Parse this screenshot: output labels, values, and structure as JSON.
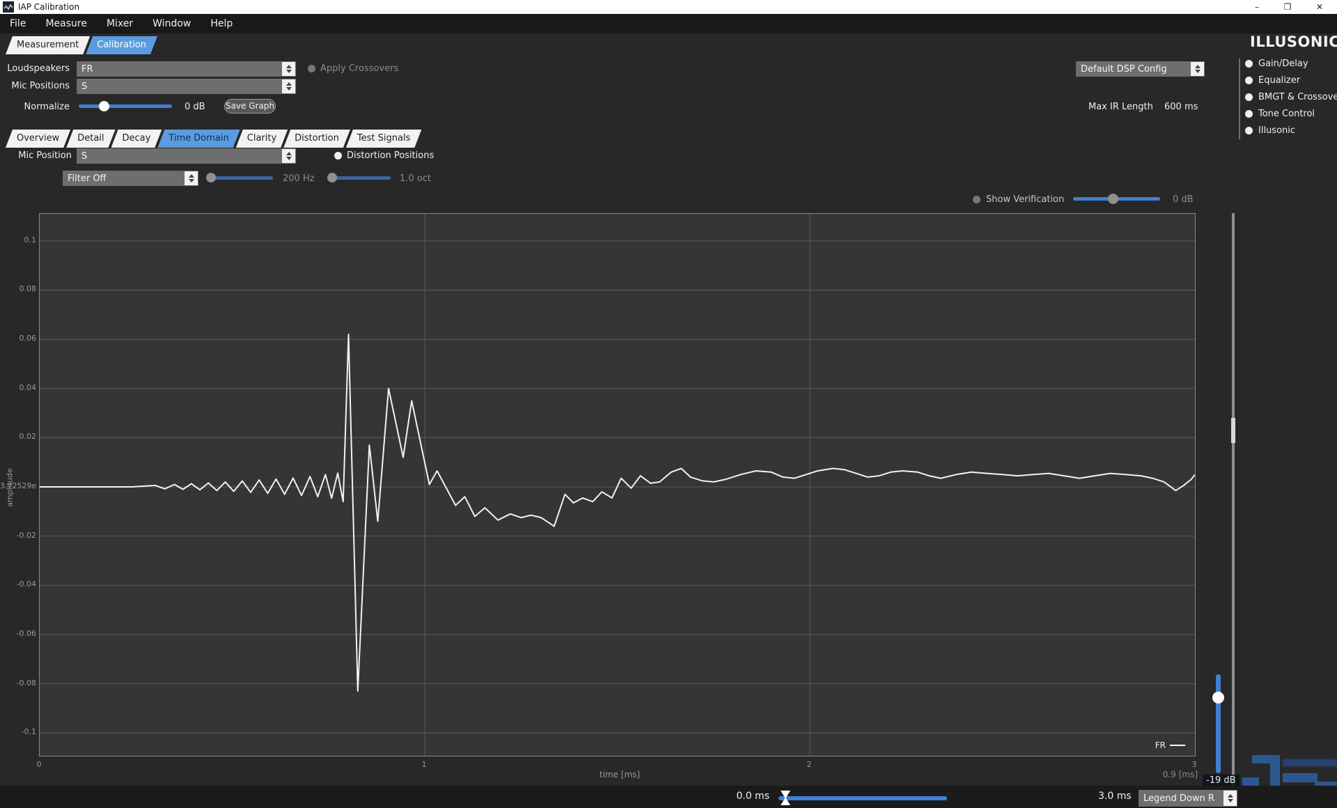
{
  "window": {
    "title": "IAP Calibration",
    "minimize": "–",
    "restore": "❐",
    "close": "✕"
  },
  "menu": {
    "items": [
      "File",
      "Measure",
      "Mixer",
      "Window",
      "Help"
    ]
  },
  "main_tabs": [
    {
      "label": "Measurement",
      "active": false
    },
    {
      "label": "Calibration",
      "active": true
    }
  ],
  "view_tabs": [
    {
      "label": "Overview",
      "active": false
    },
    {
      "label": "Detail",
      "active": false
    },
    {
      "label": "Decay",
      "active": false
    },
    {
      "label": "Time Domain",
      "active": true
    },
    {
      "label": "Clarity",
      "active": false
    },
    {
      "label": "Distortion",
      "active": false
    },
    {
      "label": "Test Signals",
      "active": false
    }
  ],
  "header": {
    "loudspeakers_label": "Loudspeakers",
    "loudspeakers_value": "FR",
    "mic_positions_label": "Mic Positions",
    "mic_positions_value": "S",
    "normalize_label": "Normalize",
    "normalize_value": "0 dB",
    "save_graph_label": "Save Graph",
    "apply_crossovers_label": "Apply Crossovers",
    "dsp_config_value": "Default DSP Config",
    "max_ir_length_label": "Max IR Length",
    "max_ir_length_value": "600 ms"
  },
  "sidebar": {
    "brand": "ILLUSONIC",
    "items": [
      "Gain/Delay",
      "Equalizer",
      "BMGT & Crossovers",
      "Tone Control",
      "Illusonic"
    ]
  },
  "controls": {
    "mic_position_label": "Mic Position",
    "mic_position_value": "S",
    "distortion_positions_label": "Distortion Positions",
    "filter_value": "Filter Off",
    "freq_value": "200 Hz",
    "oct_value": "1.0 oct",
    "show_verification_label": "Show Verification",
    "verification_gain_value": "0 dB"
  },
  "chart_data": {
    "type": "line",
    "xlabel": "time [ms]",
    "ylabel": "amplitude",
    "xlim": [
      0,
      3
    ],
    "ylim": [
      -0.1093,
      0.111
    ],
    "grid": true,
    "legend_position": "bottom-right",
    "xticks": [
      {
        "v": 0,
        "label": "0"
      },
      {
        "v": 1,
        "label": "1"
      },
      {
        "v": 2,
        "label": "2"
      },
      {
        "v": 3,
        "label": "3"
      }
    ],
    "yticks": [
      {
        "v": 0.1,
        "label": "0.1"
      },
      {
        "v": 0.08,
        "label": "0.08"
      },
      {
        "v": 0.06,
        "label": "0.06"
      },
      {
        "v": 0.04,
        "label": "0.04"
      },
      {
        "v": 0.02,
        "label": "0.02"
      },
      {
        "v": 0,
        "label": "3.72529e"
      },
      {
        "v": -0.02,
        "label": "-0.02"
      },
      {
        "v": -0.04,
        "label": "-0.04"
      },
      {
        "v": -0.06,
        "label": "-0.06"
      },
      {
        "v": -0.08,
        "label": "-0.08"
      },
      {
        "v": -0.1,
        "label": "-0.1"
      }
    ],
    "cursor_readout": "0.9 [ms]",
    "series": [
      {
        "name": "FR",
        "color": "#f2f2f2",
        "points": [
          [
            0,
            0
          ],
          [
            0.06,
            0
          ],
          [
            0.12,
            0
          ],
          [
            0.18,
            0
          ],
          [
            0.24,
            0
          ],
          [
            0.3,
            0.0006
          ],
          [
            0.325,
            -0.0008
          ],
          [
            0.35,
            0.001
          ],
          [
            0.372,
            -0.001
          ],
          [
            0.394,
            0.0013
          ],
          [
            0.416,
            -0.0012
          ],
          [
            0.438,
            0.0016
          ],
          [
            0.46,
            -0.0015
          ],
          [
            0.482,
            0.002
          ],
          [
            0.504,
            -0.0018
          ],
          [
            0.526,
            0.0024
          ],
          [
            0.548,
            -0.0022
          ],
          [
            0.57,
            0.0028
          ],
          [
            0.592,
            -0.0026
          ],
          [
            0.614,
            0.0032
          ],
          [
            0.636,
            -0.003
          ],
          [
            0.658,
            0.0036
          ],
          [
            0.68,
            -0.0035
          ],
          [
            0.702,
            0.0042
          ],
          [
            0.722,
            -0.004
          ],
          [
            0.742,
            0.005
          ],
          [
            0.758,
            -0.0046
          ],
          [
            0.774,
            0.0056
          ],
          [
            0.788,
            -0.006
          ],
          [
            0.802,
            0.062
          ],
          [
            0.826,
            -0.083
          ],
          [
            0.856,
            0.017
          ],
          [
            0.878,
            -0.014
          ],
          [
            0.906,
            0.04
          ],
          [
            0.944,
            0.012
          ],
          [
            0.966,
            0.035
          ],
          [
            1.012,
            0.001
          ],
          [
            1.032,
            0.0065
          ],
          [
            1.08,
            -0.0075
          ],
          [
            1.104,
            -0.004
          ],
          [
            1.13,
            -0.012
          ],
          [
            1.156,
            -0.0085
          ],
          [
            1.19,
            -0.0135
          ],
          [
            1.222,
            -0.011
          ],
          [
            1.25,
            -0.0125
          ],
          [
            1.276,
            -0.0115
          ],
          [
            1.302,
            -0.0125
          ],
          [
            1.336,
            -0.016
          ],
          [
            1.364,
            -0.003
          ],
          [
            1.386,
            -0.0065
          ],
          [
            1.41,
            -0.0045
          ],
          [
            1.436,
            -0.006
          ],
          [
            1.46,
            -0.002
          ],
          [
            1.486,
            -0.0045
          ],
          [
            1.51,
            0.0035
          ],
          [
            1.536,
            -0.0005
          ],
          [
            1.56,
            0.0045
          ],
          [
            1.586,
            0.0015
          ],
          [
            1.61,
            0.002
          ],
          [
            1.64,
            0.006
          ],
          [
            1.666,
            0.0075
          ],
          [
            1.69,
            0.004
          ],
          [
            1.72,
            0.0025
          ],
          [
            1.75,
            0.002
          ],
          [
            1.78,
            0.003
          ],
          [
            1.82,
            0.005
          ],
          [
            1.86,
            0.0065
          ],
          [
            1.9,
            0.006
          ],
          [
            1.93,
            0.004
          ],
          [
            1.96,
            0.0035
          ],
          [
            1.99,
            0.005
          ],
          [
            2.02,
            0.0065
          ],
          [
            2.06,
            0.0075
          ],
          [
            2.09,
            0.007
          ],
          [
            2.12,
            0.0055
          ],
          [
            2.15,
            0.004
          ],
          [
            2.18,
            0.0045
          ],
          [
            2.21,
            0.006
          ],
          [
            2.24,
            0.0065
          ],
          [
            2.28,
            0.006
          ],
          [
            2.31,
            0.0045
          ],
          [
            2.34,
            0.0035
          ],
          [
            2.38,
            0.005
          ],
          [
            2.42,
            0.006
          ],
          [
            2.46,
            0.0055
          ],
          [
            2.5,
            0.005
          ],
          [
            2.54,
            0.0045
          ],
          [
            2.58,
            0.005
          ],
          [
            2.62,
            0.0055
          ],
          [
            2.66,
            0.0045
          ],
          [
            2.7,
            0.0035
          ],
          [
            2.74,
            0.0045
          ],
          [
            2.78,
            0.0055
          ],
          [
            2.82,
            0.005
          ],
          [
            2.86,
            0.0045
          ],
          [
            2.89,
            0.0035
          ],
          [
            2.92,
            0.002
          ],
          [
            2.95,
            -0.0015
          ],
          [
            2.97,
            0.0005
          ],
          [
            2.99,
            0.003
          ],
          [
            3.0,
            0.005
          ]
        ]
      }
    ]
  },
  "footer": {
    "range_min": "0.0 ms",
    "range_max": "3.0 ms",
    "legend_mode": "Legend Down R"
  },
  "right_panel": {
    "gain_value": "-19 dB"
  },
  "colors": {
    "accent_blue": "#5b9ce0",
    "slider_blue": "#4180d2",
    "waveform": "#f2f2f2",
    "chart_bg": "#353535",
    "grid": "#5c5c5c",
    "page_bg": "#282828",
    "watermark_blue": "#2d5f9f"
  }
}
